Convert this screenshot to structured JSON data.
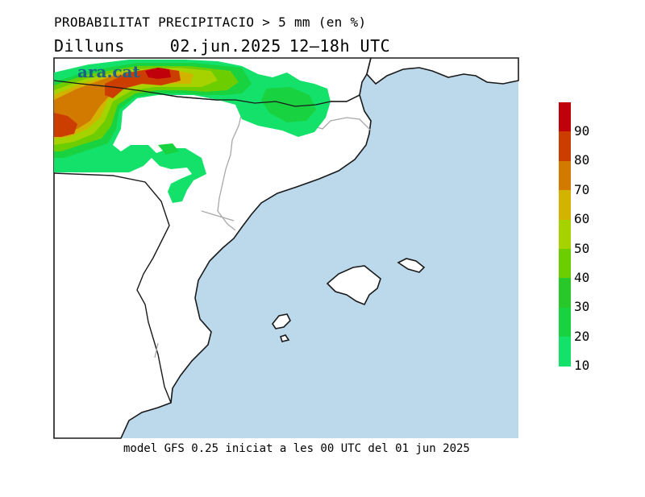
{
  "header": {
    "title": "PROBABILITAT PRECIPITACIO > 5 mm (en %)",
    "day": "Dilluns",
    "date": "02.jun.2025",
    "hours": "12–18h UTC"
  },
  "footer": {
    "model": "model GFS 0.25 iniciat a les 00 UTC del 01 jun 2025"
  },
  "logo": {
    "text": "ara.cat"
  },
  "legend": {
    "items": [
      {
        "value": "90",
        "color": "#c0000a"
      },
      {
        "value": "80",
        "color": "#cc3d00"
      },
      {
        "value": "70",
        "color": "#d27a00"
      },
      {
        "value": "60",
        "color": "#d2b400"
      },
      {
        "value": "50",
        "color": "#a6d200"
      },
      {
        "value": "40",
        "color": "#6ccd00"
      },
      {
        "value": "30",
        "color": "#28c82a"
      },
      {
        "value": "20",
        "color": "#18d240"
      },
      {
        "value": "10",
        "color": "#14e16a"
      }
    ]
  },
  "colors": {
    "sea": "#bcd9eb",
    "land": "#ffffff",
    "coast": "#1a1a1a",
    "border": "#a8a8a8"
  }
}
